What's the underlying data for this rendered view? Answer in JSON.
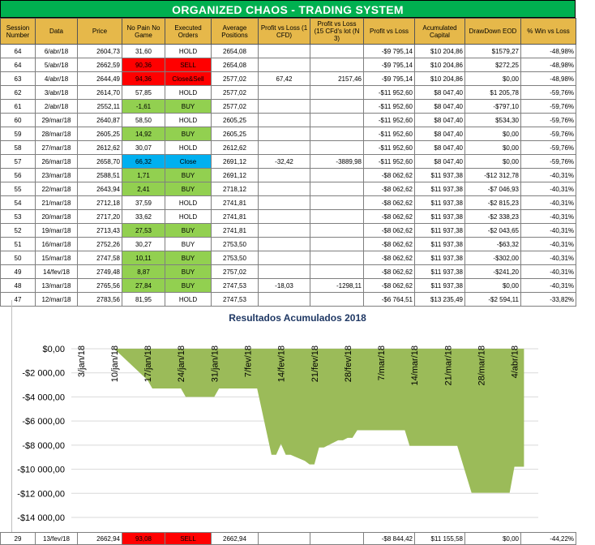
{
  "title": "ORGANIZED CHAOS - TRADING SYSTEM",
  "headers": [
    "Session Number",
    "Data",
    "Price",
    "No Pain No Game",
    "Executed Orders",
    "Average Positions",
    "Profit vs Loss (1 CFD)",
    "Profit vs Loss (15 CFd's lot (N 3)",
    "Profit vs Loss",
    "Acumulated Capital",
    "DrawDown EOD",
    "% Win vs Loss"
  ],
  "rows": [
    {
      "session": "64",
      "date": "6/abr/18",
      "price": "2604,73",
      "npng": "31,60",
      "npng_color": "",
      "order": "HOLD",
      "order_color": "",
      "avg": "2654,08",
      "pl1": "",
      "pl15": "",
      "pl": "-$9 795,14",
      "capital": "$10 204,86",
      "dd": "$1579,27",
      "pct": "-48,98%"
    },
    {
      "session": "64",
      "date": "5/abr/18",
      "price": "2662,59",
      "npng": "90,36",
      "npng_color": "red",
      "order": "SELL",
      "order_color": "red",
      "avg": "2654,08",
      "pl1": "",
      "pl15": "",
      "pl": "-$9 795,14",
      "capital": "$10 204,86",
      "dd": "$272,25",
      "pct": "-48,98%"
    },
    {
      "session": "63",
      "date": "4/abr/18",
      "price": "2644,49",
      "npng": "94,36",
      "npng_color": "red",
      "order": "Close&Sell",
      "order_color": "red",
      "avg": "2577,02",
      "pl1": "67,42",
      "pl15": "2157,46",
      "pl": "-$9 795,14",
      "capital": "$10 204,86",
      "dd": "$0,00",
      "pct": "-48,98%"
    },
    {
      "session": "62",
      "date": "3/abr/18",
      "price": "2614,70",
      "npng": "57,85",
      "npng_color": "",
      "order": "HOLD",
      "order_color": "",
      "avg": "2577,02",
      "pl1": "",
      "pl15": "",
      "pl": "-$11 952,60",
      "capital": "$8 047,40",
      "dd": "$1 205,78",
      "pct": "-59,76%"
    },
    {
      "session": "61",
      "date": "2/abr/18",
      "price": "2552,11",
      "npng": "-1,61",
      "npng_color": "green",
      "order": "BUY",
      "order_color": "green",
      "avg": "2577,02",
      "pl1": "",
      "pl15": "",
      "pl": "-$11 952,60",
      "capital": "$8 047,40",
      "dd": "-$797,10",
      "pct": "-59,76%"
    },
    {
      "session": "60",
      "date": "29/mar/18",
      "price": "2640,87",
      "npng": "58,50",
      "npng_color": "",
      "order": "HOLD",
      "order_color": "",
      "avg": "2605,25",
      "pl1": "",
      "pl15": "",
      "pl": "-$11 952,60",
      "capital": "$8 047,40",
      "dd": "$534,30",
      "pct": "-59,76%"
    },
    {
      "session": "59",
      "date": "28/mar/18",
      "price": "2605,25",
      "npng": "14,92",
      "npng_color": "green",
      "order": "BUY",
      "order_color": "green",
      "avg": "2605,25",
      "pl1": "",
      "pl15": "",
      "pl": "-$11 952,60",
      "capital": "$8 047,40",
      "dd": "$0,00",
      "pct": "-59,76%"
    },
    {
      "session": "58",
      "date": "27/mar/18",
      "price": "2612,62",
      "npng": "30,07",
      "npng_color": "",
      "order": "HOLD",
      "order_color": "",
      "avg": "2612,62",
      "pl1": "",
      "pl15": "",
      "pl": "-$11 952,60",
      "capital": "$8 047,40",
      "dd": "$0,00",
      "pct": "-59,76%"
    },
    {
      "session": "57",
      "date": "26/mar/18",
      "price": "2658,70",
      "npng": "66,32",
      "npng_color": "blue",
      "order": "Close",
      "order_color": "blue",
      "avg": "2691,12",
      "pl1": "-32,42",
      "pl15": "-3889,98",
      "pl": "-$11 952,60",
      "capital": "$8 047,40",
      "dd": "$0,00",
      "pct": "-59,76%"
    },
    {
      "session": "56",
      "date": "23/mar/18",
      "price": "2588,51",
      "npng": "1,71",
      "npng_color": "green",
      "order": "BUY",
      "order_color": "green",
      "avg": "2691,12",
      "pl1": "",
      "pl15": "",
      "pl": "-$8 062,62",
      "capital": "$11 937,38",
      "dd": "-$12 312,78",
      "pct": "-40,31%"
    },
    {
      "session": "55",
      "date": "22/mar/18",
      "price": "2643,94",
      "npng": "2,41",
      "npng_color": "green",
      "order": "BUY",
      "order_color": "green",
      "avg": "2718,12",
      "pl1": "",
      "pl15": "",
      "pl": "-$8 062,62",
      "capital": "$11 937,38",
      "dd": "-$7 046,93",
      "pct": "-40,31%"
    },
    {
      "session": "54",
      "date": "21/mar/18",
      "price": "2712,18",
      "npng": "37,59",
      "npng_color": "",
      "order": "HOLD",
      "order_color": "",
      "avg": "2741,81",
      "pl1": "",
      "pl15": "",
      "pl": "-$8 062,62",
      "capital": "$11 937,38",
      "dd": "-$2 815,23",
      "pct": "-40,31%"
    },
    {
      "session": "53",
      "date": "20/mar/18",
      "price": "2717,20",
      "npng": "33,62",
      "npng_color": "",
      "order": "HOLD",
      "order_color": "",
      "avg": "2741,81",
      "pl1": "",
      "pl15": "",
      "pl": "-$8 062,62",
      "capital": "$11 937,38",
      "dd": "-$2 338,23",
      "pct": "-40,31%"
    },
    {
      "session": "52",
      "date": "19/mar/18",
      "price": "2713,43",
      "npng": "27,53",
      "npng_color": "green",
      "order": "BUY",
      "order_color": "green",
      "avg": "2741,81",
      "pl1": "",
      "pl15": "",
      "pl": "-$8 062,62",
      "capital": "$11 937,38",
      "dd": "-$2 043,65",
      "pct": "-40,31%"
    },
    {
      "session": "51",
      "date": "16/mar/18",
      "price": "2752,26",
      "npng": "30,27",
      "npng_color": "",
      "order": "BUY",
      "order_color": "",
      "avg": "2753,50",
      "pl1": "",
      "pl15": "",
      "pl": "-$8 062,62",
      "capital": "$11 937,38",
      "dd": "-$63,32",
      "pct": "-40,31%"
    },
    {
      "session": "50",
      "date": "15/mar/18",
      "price": "2747,58",
      "npng": "10,11",
      "npng_color": "green",
      "order": "BUY",
      "order_color": "green",
      "avg": "2753,50",
      "pl1": "",
      "pl15": "",
      "pl": "-$8 062,62",
      "capital": "$11 937,38",
      "dd": "-$302,00",
      "pct": "-40,31%"
    },
    {
      "session": "49",
      "date": "14/fev/18",
      "price": "2749,48",
      "npng": "8,87",
      "npng_color": "green",
      "order": "BUY",
      "order_color": "green",
      "avg": "2757,02",
      "pl1": "",
      "pl15": "",
      "pl": "-$8 062,62",
      "capital": "$11 937,38",
      "dd": "-$241,20",
      "pct": "-40,31%"
    },
    {
      "session": "48",
      "date": "13/mar/18",
      "price": "2765,56",
      "npng": "27,84",
      "npng_color": "green",
      "order": "BUY",
      "order_color": "green",
      "avg": "2747,53",
      "pl1": "-18,03",
      "pl15": "-1298,11",
      "pl": "-$8 062,62",
      "capital": "$11 937,38",
      "dd": "$0,00",
      "pct": "-40,31%"
    },
    {
      "session": "47",
      "date": "12/mar/18",
      "price": "2783,56",
      "npng": "81,95",
      "npng_color": "",
      "order": "HOLD",
      "order_color": "",
      "avg": "2747,53",
      "pl1": "",
      "pl15": "",
      "pl": "-$6 764,51",
      "capital": "$13 235,49",
      "dd": "-$2 594,11",
      "pct": "-33,82%"
    }
  ],
  "chart_data": {
    "type": "area",
    "title": "Resultados Acumulados 2018",
    "color": "#9bbb59",
    "ylim": [
      -14000,
      0
    ],
    "yticks": [
      0,
      -2000,
      -4000,
      -6000,
      -8000,
      -10000,
      -12000,
      -14000
    ],
    "ytick_labels": [
      "$0,00",
      "-$2 000,00",
      "-$4 000,00",
      "-$6 000,00",
      "-$8 000,00",
      "-$10 000,00",
      "-$12 000,00",
      "-$14 000,00"
    ],
    "xlim": [
      "2018-01-01",
      "2018-04-09"
    ],
    "xticks": [
      "3/jan/18",
      "10/jan/18",
      "17/jan/18",
      "24/jan/18",
      "31/jan/18",
      "7/fev/18",
      "14/fev/18",
      "21/fev/18",
      "28/fev/18",
      "7/mar/18",
      "14/mar/18",
      "21/mar/18",
      "28/mar/18",
      "4/abr/18"
    ],
    "x": [
      "2018-01-08",
      "2018-01-10",
      "2018-01-17",
      "2018-01-18",
      "2018-01-19",
      "2018-01-24",
      "2018-01-25",
      "2018-01-26",
      "2018-01-31",
      "2018-02-01",
      "2018-02-02",
      "2018-02-05",
      "2018-02-06",
      "2018-02-07",
      "2018-02-08",
      "2018-02-09",
      "2018-02-12",
      "2018-02-13",
      "2018-02-14",
      "2018-02-15",
      "2018-02-16",
      "2018-02-19",
      "2018-02-20",
      "2018-02-21",
      "2018-02-22",
      "2018-02-23",
      "2018-02-26",
      "2018-02-27",
      "2018-02-28",
      "2018-03-01",
      "2018-03-02",
      "2018-03-05",
      "2018-03-06",
      "2018-03-07",
      "2018-03-12",
      "2018-03-13",
      "2018-03-22",
      "2018-03-23",
      "2018-03-26",
      "2018-03-27",
      "2018-03-28",
      "2018-04-02",
      "2018-04-03",
      "2018-04-04",
      "2018-04-05",
      "2018-04-06"
    ],
    "y": [
      0,
      0,
      -2600,
      -3300,
      -3300,
      -3300,
      -4000,
      -4000,
      -4000,
      -3300,
      -3300,
      -3300,
      -3300,
      -3300,
      -3300,
      -3300,
      -8800,
      -8800,
      -7900,
      -8800,
      -8800,
      -9300,
      -9600,
      -9600,
      -8200,
      -8200,
      -7600,
      -7600,
      -7400,
      -7400,
      -6764.51,
      -6764.51,
      -6764.51,
      -6764.51,
      -6764.51,
      -8062.62,
      -8062.62,
      -8062.62,
      -11952.6,
      -11952.6,
      -11952.6,
      -11952.6,
      -11952.6,
      -9795.14,
      -9795.14,
      -9795.14
    ]
  },
  "bottom_row": {
    "session": "29",
    "date": "13/fev/18",
    "price": "2662,94",
    "npng": "93,08",
    "order": "SELL",
    "avg": "2662,94",
    "pl": "-$8 844,42",
    "capital": "$11 155,58",
    "dd": "$0,00",
    "pct": "-44,22%"
  }
}
